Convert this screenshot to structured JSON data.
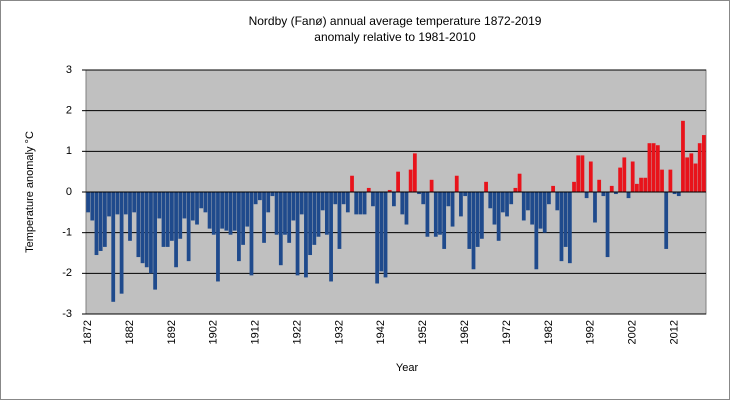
{
  "chart_data": {
    "type": "bar",
    "title": "Nordby (Fanø) annual average  temperature 1872-2019",
    "subtitle": "anomaly relative to 1981-2010",
    "xlabel": "Year",
    "ylabel": "Temperature anomaly °C",
    "categories": [
      "1872",
      null,
      null,
      null,
      null,
      null,
      null,
      null,
      null,
      null,
      "1882",
      null,
      null,
      null,
      null,
      null,
      null,
      null,
      null,
      null,
      "1892",
      null,
      null,
      null,
      null,
      null,
      null,
      null,
      null,
      null,
      "1902",
      null,
      null,
      null,
      null,
      null,
      null,
      null,
      null,
      null,
      "1912",
      null,
      null,
      null,
      null,
      null,
      null,
      null,
      null,
      null,
      "1922",
      null,
      null,
      null,
      null,
      null,
      null,
      null,
      null,
      null,
      "1932",
      null,
      null,
      null,
      null,
      null,
      null,
      null,
      null,
      null,
      "1942",
      null,
      null,
      null,
      null,
      null,
      null,
      null,
      null,
      null,
      "1952",
      null,
      null,
      null,
      null,
      null,
      null,
      null,
      null,
      null,
      "1962",
      null,
      null,
      null,
      null,
      null,
      null,
      null,
      null,
      null,
      "1972",
      null,
      null,
      null,
      null,
      null,
      null,
      null,
      null,
      null,
      "1982",
      null,
      null,
      null,
      null,
      null,
      null,
      null,
      null,
      null,
      "1992",
      null,
      null,
      null,
      null,
      null,
      null,
      null,
      null,
      null,
      "2002",
      null,
      null,
      null,
      null,
      null,
      null,
      null,
      null,
      null,
      "2012",
      null,
      null,
      null,
      null,
      null,
      null,
      null
    ],
    "values": [
      -0.5,
      -0.7,
      -1.55,
      -1.45,
      -1.35,
      -0.6,
      -2.7,
      -0.55,
      -2.5,
      -0.55,
      -1.2,
      -0.5,
      -1.6,
      -1.75,
      -1.85,
      -2.0,
      -2.4,
      -0.65,
      -1.35,
      -1.35,
      -1.2,
      -1.85,
      -1.15,
      -0.65,
      -1.7,
      -0.7,
      -0.8,
      -0.4,
      -0.5,
      -0.9,
      -1.05,
      -2.2,
      -0.9,
      -0.95,
      -1.05,
      -0.95,
      -1.7,
      -1.3,
      -0.85,
      -2.05,
      -0.3,
      -0.2,
      -1.25,
      -0.5,
      -0.1,
      -1.05,
      -1.8,
      -1.05,
      -1.25,
      -0.7,
      -2.05,
      -0.55,
      -2.1,
      -1.55,
      -1.3,
      -1.1,
      -0.45,
      -1.05,
      -2.2,
      -0.3,
      -1.4,
      -0.3,
      -0.5,
      0.4,
      -0.55,
      -0.55,
      -0.55,
      0.1,
      -0.35,
      -2.25,
      -1.95,
      -2.1,
      0.05,
      -0.35,
      0.5,
      -0.55,
      -0.8,
      0.55,
      0.95,
      -0.05,
      -0.3,
      -1.1,
      0.3,
      -1.1,
      -1.05,
      -1.4,
      -0.35,
      -0.85,
      0.4,
      -0.6,
      -0.1,
      -1.4,
      -1.9,
      -1.35,
      -1.15,
      0.25,
      -0.4,
      -0.8,
      -1.2,
      -0.5,
      -0.6,
      -0.3,
      0.1,
      0.45,
      -0.7,
      -0.45,
      -0.8,
      -1.9,
      -0.9,
      -1.0,
      -0.3,
      0.15,
      -0.45,
      -1.7,
      -1.35,
      -1.75,
      0.25,
      0.9,
      0.9,
      -0.15,
      0.75,
      -0.75,
      0.3,
      -0.1,
      -1.6,
      0.15,
      -0.05,
      0.6,
      0.85,
      -0.15,
      0.75,
      0.2,
      0.35,
      0.35,
      1.2,
      1.2,
      1.15,
      0.55,
      -1.4,
      0.55,
      -0.05,
      -0.1,
      1.75,
      0.85,
      0.95,
      0.7,
      1.2,
      1.4
    ],
    "color_negative": "#1f4a8c",
    "color_positive": "#e8131b",
    "ylim": [
      -3,
      3
    ],
    "yticks": [
      -3,
      -2,
      -1,
      0,
      1,
      2,
      3
    ],
    "grid": true
  }
}
